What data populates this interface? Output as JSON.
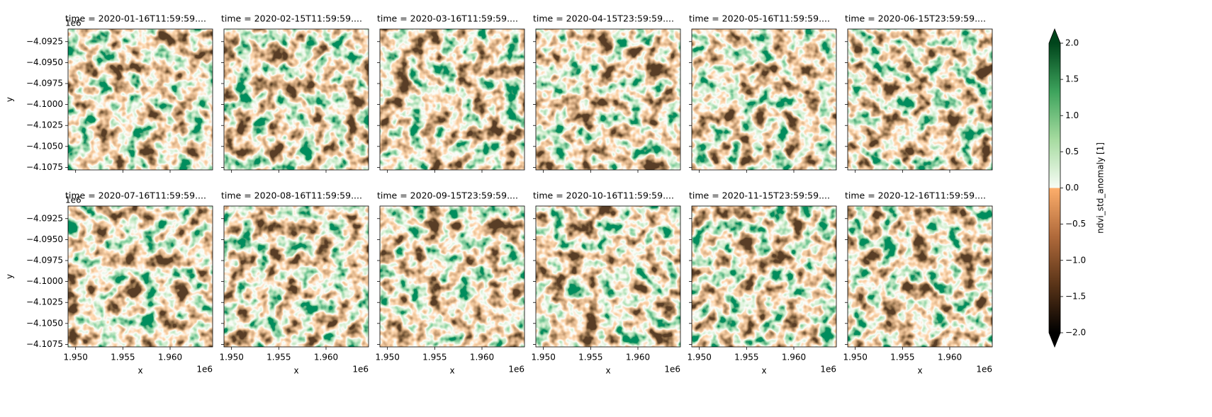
{
  "chart_data": {
    "type": "image-grid",
    "panels": [
      "time = 2020-01-16T11:59:59....",
      "time = 2020-02-15T11:59:59....",
      "time = 2020-03-16T11:59:59....",
      "time = 2020-04-15T23:59:59....",
      "time = 2020-05-16T11:59:59....",
      "time = 2020-06-15T23:59:59....",
      "time = 2020-07-16T11:59:59....",
      "time = 2020-08-16T11:59:59....",
      "time = 2020-09-15T23:59:59....",
      "time = 2020-10-16T11:59:59....",
      "time = 2020-11-15T23:59:59....",
      "time = 2020-12-16T11:59:59...."
    ],
    "columns": 6,
    "xlabel": "x",
    "ylabel": "y",
    "x_offset_label": "1e6",
    "y_offset_label": "1e6",
    "xlim": [
      1.9492,
      1.9645
    ],
    "xticks": [
      {
        "value": 1.95,
        "label": "1.950"
      },
      {
        "value": 1.955,
        "label": "1.955"
      },
      {
        "value": 1.96,
        "label": "1.960"
      }
    ],
    "ylim": [
      -4.1078,
      -4.091
    ],
    "yticks": [
      {
        "value": -4.0925,
        "label": "−4.0925"
      },
      {
        "value": -4.095,
        "label": "−4.0950"
      },
      {
        "value": -4.0975,
        "label": "−4.0975"
      },
      {
        "value": -4.1,
        "label": "−4.1000"
      },
      {
        "value": -4.1025,
        "label": "−4.1025"
      },
      {
        "value": -4.105,
        "label": "−4.1050"
      },
      {
        "value": -4.1075,
        "label": "−4.1075"
      }
    ],
    "colorbar": {
      "label": "ndvi_std_anomaly [1]",
      "lim": [
        -2,
        2
      ],
      "ticks": [
        {
          "value": -2,
          "label": "−2.0"
        },
        {
          "value": -1.5,
          "label": "−1.5"
        },
        {
          "value": -1,
          "label": "−1.0"
        },
        {
          "value": -0.5,
          "label": "−0.5"
        },
        {
          "value": 0,
          "label": "0.0"
        },
        {
          "value": 0.5,
          "label": "0.5"
        },
        {
          "value": 1,
          "label": "1.0"
        },
        {
          "value": 1.5,
          "label": "1.5"
        },
        {
          "value": 2,
          "label": "2.0"
        }
      ],
      "colors_below": [
        "#000000",
        "#5a3418",
        "#b06a3b",
        "#fdae6b"
      ],
      "colors_above": [
        "#f7fcf5",
        "#a6dba0",
        "#3da35c",
        "#00441b"
      ]
    }
  }
}
